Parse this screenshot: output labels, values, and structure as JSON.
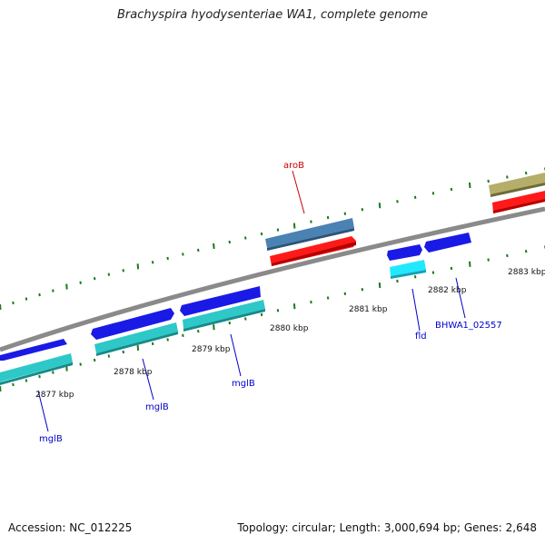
{
  "title": "Brachyspira hyodysenteriae WA1, complete genome",
  "footer": {
    "accession": "Accession: NC_012225",
    "summary": "Topology: circular; Length: 3,000,694 bp; Genes: 2,648"
  },
  "colors": {
    "backbone": "#8a8a8a",
    "tick": "#1a7a1a",
    "cds_blue": "#1a1ae6",
    "gene_teal": "#2ec8c8",
    "gene_cyan": "#22e8ff",
    "gene_steel": "#4a82b4",
    "gene_red": "#ff1a1a",
    "gene_olive": "#b4ae6a",
    "label_blue": "#0000cc",
    "label_red": "#cc0000",
    "kbp_label": "#111111"
  },
  "kbp_labels": [
    "2877 kbp",
    "2878 kbp",
    "2879 kbp",
    "2880 kbp",
    "2881 kbp",
    "2882 kbp",
    "2883 kbp"
  ],
  "gene_labels": [
    {
      "text": "mglB",
      "color": "label_blue"
    },
    {
      "text": "mglB",
      "color": "label_blue"
    },
    {
      "text": "mglB",
      "color": "label_blue"
    },
    {
      "text": "fld",
      "color": "label_blue"
    },
    {
      "text": "BHWA1_02557",
      "color": "label_blue"
    },
    {
      "text": "aroB",
      "color": "label_red"
    }
  ]
}
